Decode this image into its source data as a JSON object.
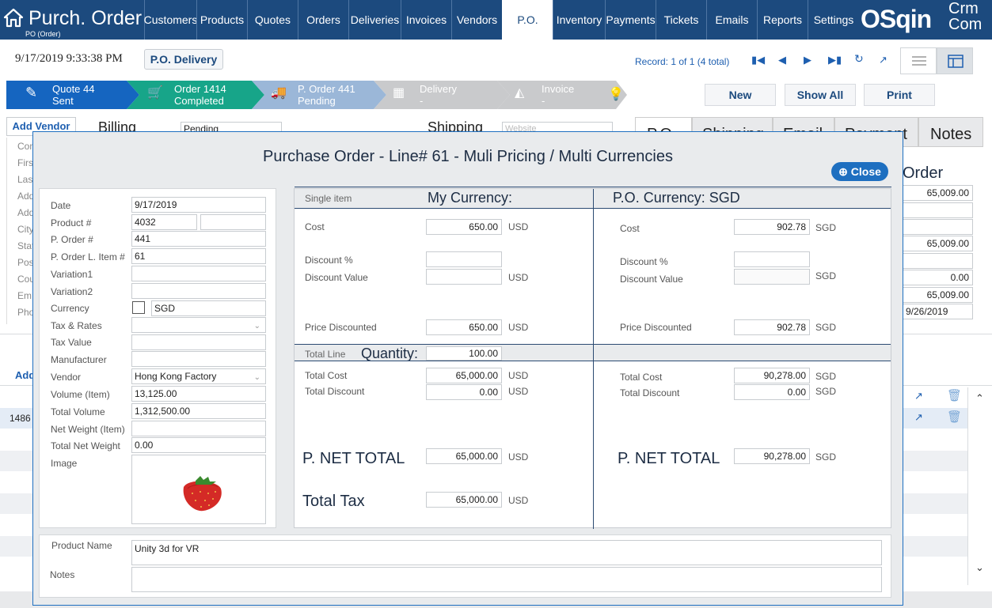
{
  "app": {
    "title": "Purch. Order",
    "subtitle": "PO (Order)"
  },
  "nav": {
    "tabs": [
      {
        "label": "Customers"
      },
      {
        "label": "Products"
      },
      {
        "label": "Quotes"
      },
      {
        "label": "Orders"
      },
      {
        "label": "Deliveries"
      },
      {
        "label": "Invoices"
      },
      {
        "label": "Vendors"
      },
      {
        "label": "P.O."
      },
      {
        "label": "Inventory"
      },
      {
        "label": "Payments"
      },
      {
        "label": "Tickets"
      },
      {
        "label": "Emails"
      },
      {
        "label": "Reports"
      },
      {
        "label": "Settings"
      }
    ],
    "active": "P.O."
  },
  "logo": {
    "main": "OSqin",
    "top": "Crm",
    "bottom": "Com"
  },
  "toolbar": {
    "datetime": "9/17/2019 9:33:38 PM",
    "po_delivery": "P.O. Delivery",
    "record_label": "Record:",
    "record_value": "1 of 1 (4 total)"
  },
  "steps": [
    {
      "title": "Quote 44",
      "status": "Sent",
      "color": "#1565c0"
    },
    {
      "title": "Order 1414",
      "status": "Completed",
      "color": "#17a589"
    },
    {
      "title": "P. Order 441",
      "status": "Pending",
      "color": "#9bb7d8"
    },
    {
      "title": "Delivery",
      "status": "-",
      "color": "#c9cacc"
    },
    {
      "title": "Invoice",
      "status": "-",
      "color": "#c9cacc"
    }
  ],
  "actions": {
    "new": "New",
    "show_all": "Show All",
    "print": "Print"
  },
  "background": {
    "add_vendor": "Add Vendor",
    "billing": "Billing",
    "billing_value": "Pending",
    "shipping": "Shipping",
    "shipping_placeholder": "Website",
    "left_labels": [
      "Con",
      "Firs",
      "Las",
      "Add",
      "Add",
      "City",
      "Stat",
      "Pos",
      "Cou",
      "Em",
      "Pho"
    ],
    "tabs": [
      "P.O.",
      "Shipping",
      "Email",
      "Payment",
      "Notes"
    ],
    "order_label": "Order",
    "right_values": [
      "65,009.00",
      "",
      "",
      "65,009.00",
      "",
      "0.00",
      "65,009.00",
      "9/26/2019"
    ],
    "add_short": "Add",
    "row_id": "1486"
  },
  "modal": {
    "title": "Purchase Order  - Line# 61 - Muli Pricing / Multi Currencies",
    "close": "Close",
    "fields": {
      "date": {
        "label": "Date",
        "value": "9/17/2019"
      },
      "product": {
        "label": "Product #",
        "value": "4032",
        "value2": ""
      },
      "porder": {
        "label": "P. Order #",
        "value": "441"
      },
      "line_item": {
        "label": "P. Order L. Item #",
        "value": "61"
      },
      "variation1": {
        "label": "Variation1",
        "value": ""
      },
      "variation2": {
        "label": "Variation2",
        "value": ""
      },
      "currency": {
        "label": "Currency",
        "value": "SGD"
      },
      "tax_rates": {
        "label": "Tax & Rates",
        "value": ""
      },
      "tax_value": {
        "label": "Tax Value",
        "value": ""
      },
      "manufacturer": {
        "label": "Manufacturer",
        "value": ""
      },
      "vendor": {
        "label": "Vendor",
        "value": "Hong Kong Factory"
      },
      "volume_item": {
        "label": "Volume (Item)",
        "value": "13,125.00"
      },
      "total_volume": {
        "label": "Total Volume",
        "value": "1,312,500.00"
      },
      "net_weight_item": {
        "label": "Net Weight (Item)",
        "value": ""
      },
      "total_net_weight": {
        "label": "Total Net Weight",
        "value": "0.00"
      },
      "image": {
        "label": "Image"
      }
    },
    "pricing": {
      "single_item": "Single item",
      "my_currency": "My Currency:",
      "po_currency": "P.O. Currency: SGD",
      "cost_label": "Cost",
      "discount_pct_label": "Discount %",
      "discount_value_label": "Discount Value",
      "price_discounted_label": "Price Discounted",
      "total_line": "Total Line",
      "quantity_label": "Quantity:",
      "quantity": "100.00",
      "total_cost_label": "Total Cost",
      "total_discount_label": "Total Discount",
      "net_total_label": "P. NET TOTAL",
      "total_tax_label": "Total Tax",
      "mine": {
        "unit": "USD",
        "cost": "650.00",
        "discount_pct": "",
        "discount_value": "",
        "price_discounted": "650.00",
        "total_cost": "65,000.00",
        "total_discount": "0.00",
        "net_total": "65,000.00",
        "total_tax": "65,000.00"
      },
      "po": {
        "unit": "SGD",
        "cost": "902.78",
        "discount_pct": "",
        "discount_value": "",
        "price_discounted": "902.78",
        "total_cost": "90,278.00",
        "total_discount": "0.00",
        "net_total": "90,278.00"
      }
    },
    "bottom": {
      "product_name_label": "Product Name",
      "product_name": "Unity 3d for VR",
      "notes_label": "Notes",
      "notes": ""
    }
  }
}
